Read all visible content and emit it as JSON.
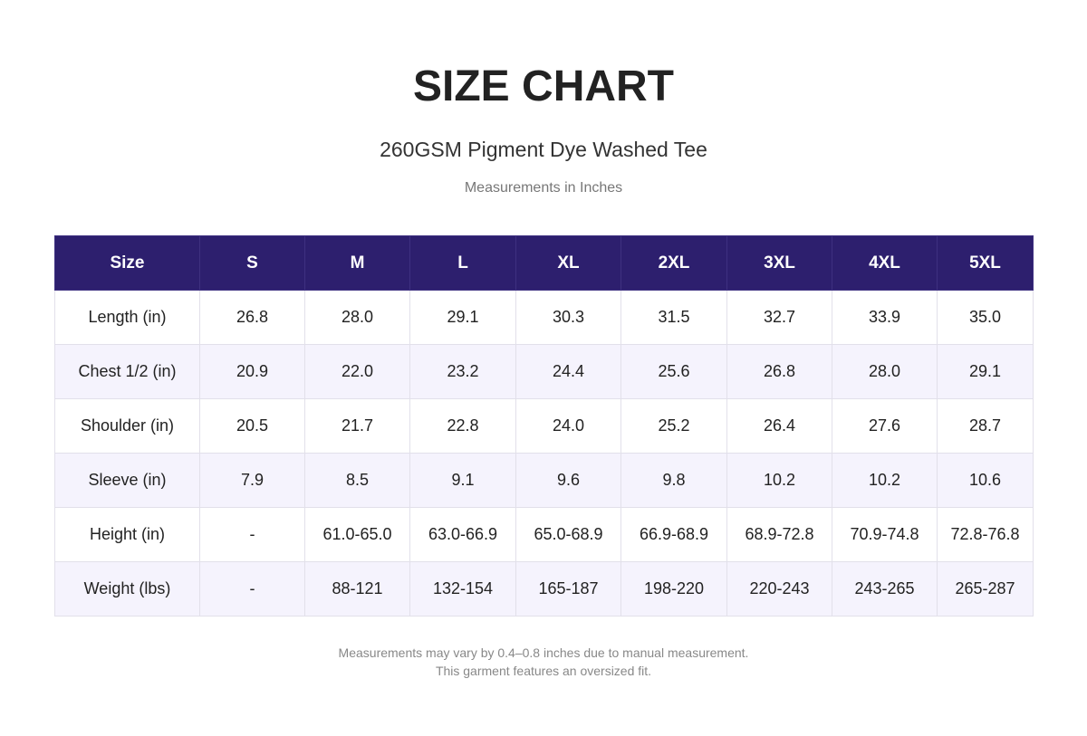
{
  "header": {
    "title": "SIZE CHART",
    "subtitle": "260GSM Pigment Dye Washed Tee",
    "note": "Measurements in Inches"
  },
  "table": {
    "columns": [
      "Size",
      "S",
      "M",
      "L",
      "XL",
      "2XL",
      "3XL",
      "4XL",
      "5XL"
    ],
    "rows": [
      [
        "Length (in)",
        "26.8",
        "28.0",
        "29.1",
        "30.3",
        "31.5",
        "32.7",
        "33.9",
        "35.0"
      ],
      [
        "Chest 1/2 (in)",
        "20.9",
        "22.0",
        "23.2",
        "24.4",
        "25.6",
        "26.8",
        "28.0",
        "29.1"
      ],
      [
        "Shoulder (in)",
        "20.5",
        "21.7",
        "22.8",
        "24.0",
        "25.2",
        "26.4",
        "27.6",
        "28.7"
      ],
      [
        "Sleeve (in)",
        "7.9",
        "8.5",
        "9.1",
        "9.6",
        "9.8",
        "10.2",
        "10.2",
        "10.6"
      ],
      [
        "Height (in)",
        "-",
        "61.0-65.0",
        "63.0-66.9",
        "65.0-68.9",
        "66.9-68.9",
        "68.9-72.8",
        "70.9-74.8",
        "72.8-76.8"
      ],
      [
        "Weight (lbs)",
        "-",
        "88-121",
        "132-154",
        "165-187",
        "198-220",
        "220-243",
        "243-265",
        "265-287"
      ]
    ]
  },
  "footer": {
    "lines": [
      "Measurements may vary by 0.4–0.8 inches due to manual measurement.",
      "This garment features an oversized fit."
    ]
  }
}
